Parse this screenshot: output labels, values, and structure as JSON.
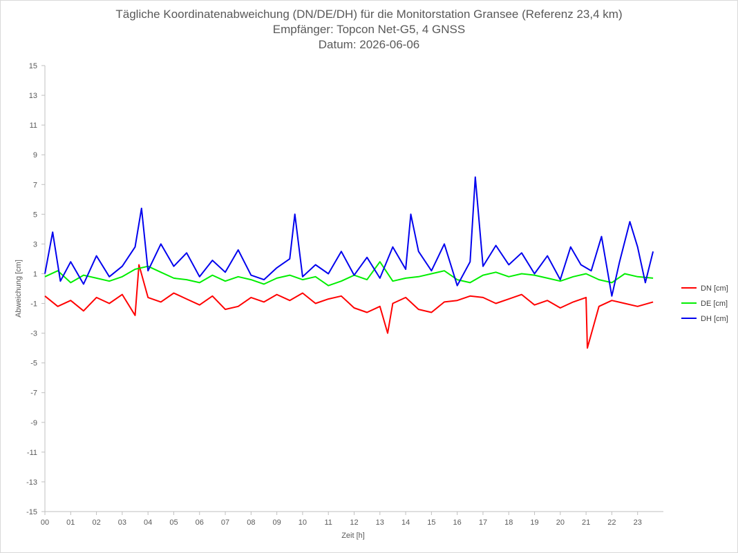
{
  "chart_data": {
    "type": "line",
    "title": "Tägliche Koordinatenabweichung (DN/DE/DH) für die Monitorstation Gransee (Referenz 23,4 km)",
    "subtitle1": "Empfänger: Topcon Net-G5, 4 GNSS",
    "subtitle2": "Datum: 2026-06-06",
    "xlabel": "Zeit [h]",
    "ylabel": "Abweichung [cm]",
    "xlim": [
      0,
      24
    ],
    "ylim": [
      -15,
      15
    ],
    "x_ticks": [
      "00",
      "01",
      "02",
      "03",
      "04",
      "05",
      "06",
      "07",
      "08",
      "09",
      "10",
      "11",
      "12",
      "13",
      "14",
      "15",
      "16",
      "17",
      "18",
      "19",
      "20",
      "21",
      "22",
      "23"
    ],
    "y_ticks": [
      "15",
      "13",
      "11",
      "9",
      "7",
      "5",
      "3",
      "1",
      "-1",
      "-3",
      "-5",
      "-7",
      "-9",
      "-11",
      "-13",
      "-15"
    ],
    "legend_position": "right",
    "grid": false,
    "series": [
      {
        "name": "DN [cm]",
        "color": "#ff0000",
        "x": [
          0,
          0.5,
          1,
          1.5,
          2,
          2.5,
          3,
          3.5,
          3.65,
          4,
          4.5,
          5,
          5.5,
          6,
          6.5,
          7,
          7.5,
          8,
          8.5,
          9,
          9.5,
          10,
          10.5,
          11,
          11.5,
          12,
          12.5,
          13,
          13.3,
          13.5,
          14,
          14.5,
          15,
          15.5,
          16,
          16.5,
          17,
          17.5,
          18,
          18.5,
          19,
          19.5,
          20,
          20.5,
          21,
          21.05,
          21.5,
          22,
          22.5,
          23,
          23.6
        ],
        "y": [
          -0.5,
          -1.2,
          -0.8,
          -1.5,
          -0.6,
          -1.0,
          -0.4,
          -1.8,
          1.6,
          -0.6,
          -0.9,
          -0.3,
          -0.7,
          -1.1,
          -0.5,
          -1.4,
          -1.2,
          -0.6,
          -0.9,
          -0.4,
          -0.8,
          -0.3,
          -1.0,
          -0.7,
          -0.5,
          -1.3,
          -1.6,
          -1.2,
          -3.0,
          -1.0,
          -0.6,
          -1.4,
          -1.6,
          -0.9,
          -0.8,
          -0.5,
          -0.6,
          -1.0,
          -0.7,
          -0.4,
          -1.1,
          -0.8,
          -1.3,
          -0.9,
          -0.6,
          -4.0,
          -1.2,
          -0.8,
          -1.0,
          -1.2,
          -0.9
        ]
      },
      {
        "name": "DE [cm]",
        "color": "#00ee00",
        "x": [
          0,
          0.5,
          1,
          1.5,
          2,
          2.5,
          3,
          3.5,
          4,
          4.5,
          5,
          5.5,
          6,
          6.5,
          7,
          7.5,
          8,
          8.5,
          9,
          9.5,
          10,
          10.5,
          11,
          11.5,
          12,
          12.5,
          13,
          13.5,
          14,
          14.5,
          15,
          15.5,
          16,
          16.5,
          17,
          17.5,
          18,
          18.5,
          19,
          19.5,
          20,
          20.5,
          21,
          21.5,
          22,
          22.5,
          23,
          23.6
        ],
        "y": [
          0.8,
          1.2,
          0.4,
          0.9,
          0.7,
          0.5,
          0.8,
          1.3,
          1.5,
          1.1,
          0.7,
          0.6,
          0.4,
          0.9,
          0.5,
          0.8,
          0.6,
          0.3,
          0.7,
          0.9,
          0.6,
          0.8,
          0.2,
          0.5,
          0.9,
          0.6,
          1.8,
          0.5,
          0.7,
          0.8,
          1.0,
          1.2,
          0.6,
          0.4,
          0.9,
          1.1,
          0.8,
          1.0,
          0.9,
          0.7,
          0.5,
          0.8,
          1.0,
          0.6,
          0.4,
          1.0,
          0.8,
          0.7
        ]
      },
      {
        "name": "DH [cm]",
        "color": "#0000ee",
        "x": [
          0,
          0.3,
          0.6,
          1,
          1.5,
          2,
          2.5,
          3,
          3.5,
          3.75,
          4,
          4.5,
          5,
          5.5,
          6,
          6.5,
          7,
          7.5,
          8,
          8.5,
          9,
          9.5,
          9.7,
          10,
          10.5,
          11,
          11.5,
          12,
          12.5,
          13,
          13.5,
          14,
          14.2,
          14.5,
          15,
          15.5,
          16,
          16.5,
          16.7,
          17,
          17.5,
          18,
          18.5,
          19,
          19.5,
          20,
          20.4,
          20.8,
          21.2,
          21.6,
          22,
          22.3,
          22.7,
          23,
          23.3,
          23.6
        ],
        "y": [
          1.0,
          3.8,
          0.5,
          1.8,
          0.3,
          2.2,
          0.8,
          1.5,
          2.8,
          5.4,
          1.2,
          3.0,
          1.5,
          2.4,
          0.8,
          1.9,
          1.1,
          2.6,
          0.9,
          0.6,
          1.4,
          2.0,
          5.0,
          0.8,
          1.6,
          1.0,
          2.5,
          0.9,
          2.1,
          0.7,
          2.8,
          1.3,
          5.0,
          2.5,
          1.2,
          3.0,
          0.2,
          1.8,
          7.5,
          1.5,
          2.9,
          1.6,
          2.4,
          1.0,
          2.2,
          0.6,
          2.8,
          1.6,
          1.2,
          3.5,
          -0.5,
          1.8,
          4.5,
          2.8,
          0.4,
          2.5
        ]
      }
    ]
  }
}
